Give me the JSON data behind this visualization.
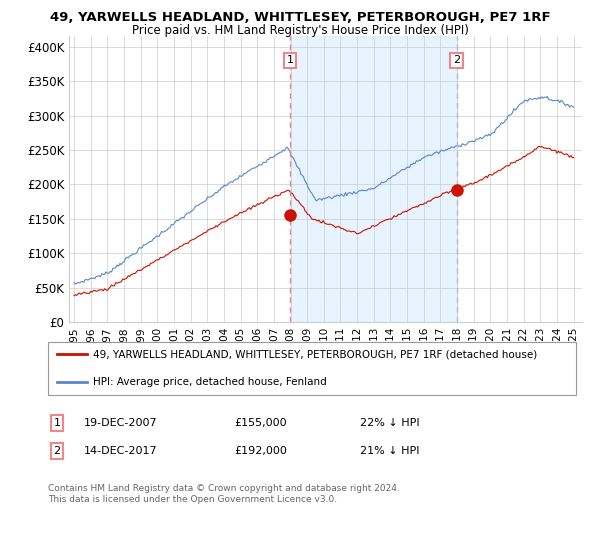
{
  "title": "49, YARWELLS HEADLAND, WHITTLESEY, PETERBOROUGH, PE7 1RF",
  "subtitle": "Price paid vs. HM Land Registry's House Price Index (HPI)",
  "ylabel_ticks": [
    "£0",
    "£50K",
    "£100K",
    "£150K",
    "£200K",
    "£250K",
    "£300K",
    "£350K",
    "£400K"
  ],
  "ytick_values": [
    0,
    50000,
    100000,
    150000,
    200000,
    250000,
    300000,
    350000,
    400000
  ],
  "ylim": [
    0,
    415000
  ],
  "xlim_start": 1994.7,
  "xlim_end": 2025.5,
  "hpi_color": "#5588cc",
  "price_color": "#cc1100",
  "dash1_color": "#ee8888",
  "dash2_color": "#aabbdd",
  "shade_color": "#ddeeff",
  "marker1_date": 2007.97,
  "marker1_price": 155000,
  "marker2_date": 2017.97,
  "marker2_price": 192000,
  "legend_line1": "49, YARWELLS HEADLAND, WHITTLESEY, PETERBOROUGH, PE7 1RF (detached house)",
  "legend_line2": "HPI: Average price, detached house, Fenland",
  "footer": "Contains HM Land Registry data © Crown copyright and database right 2024.\nThis data is licensed under the Open Government Licence v3.0.",
  "background_color": "#ffffff",
  "grid_color": "#cccccc"
}
